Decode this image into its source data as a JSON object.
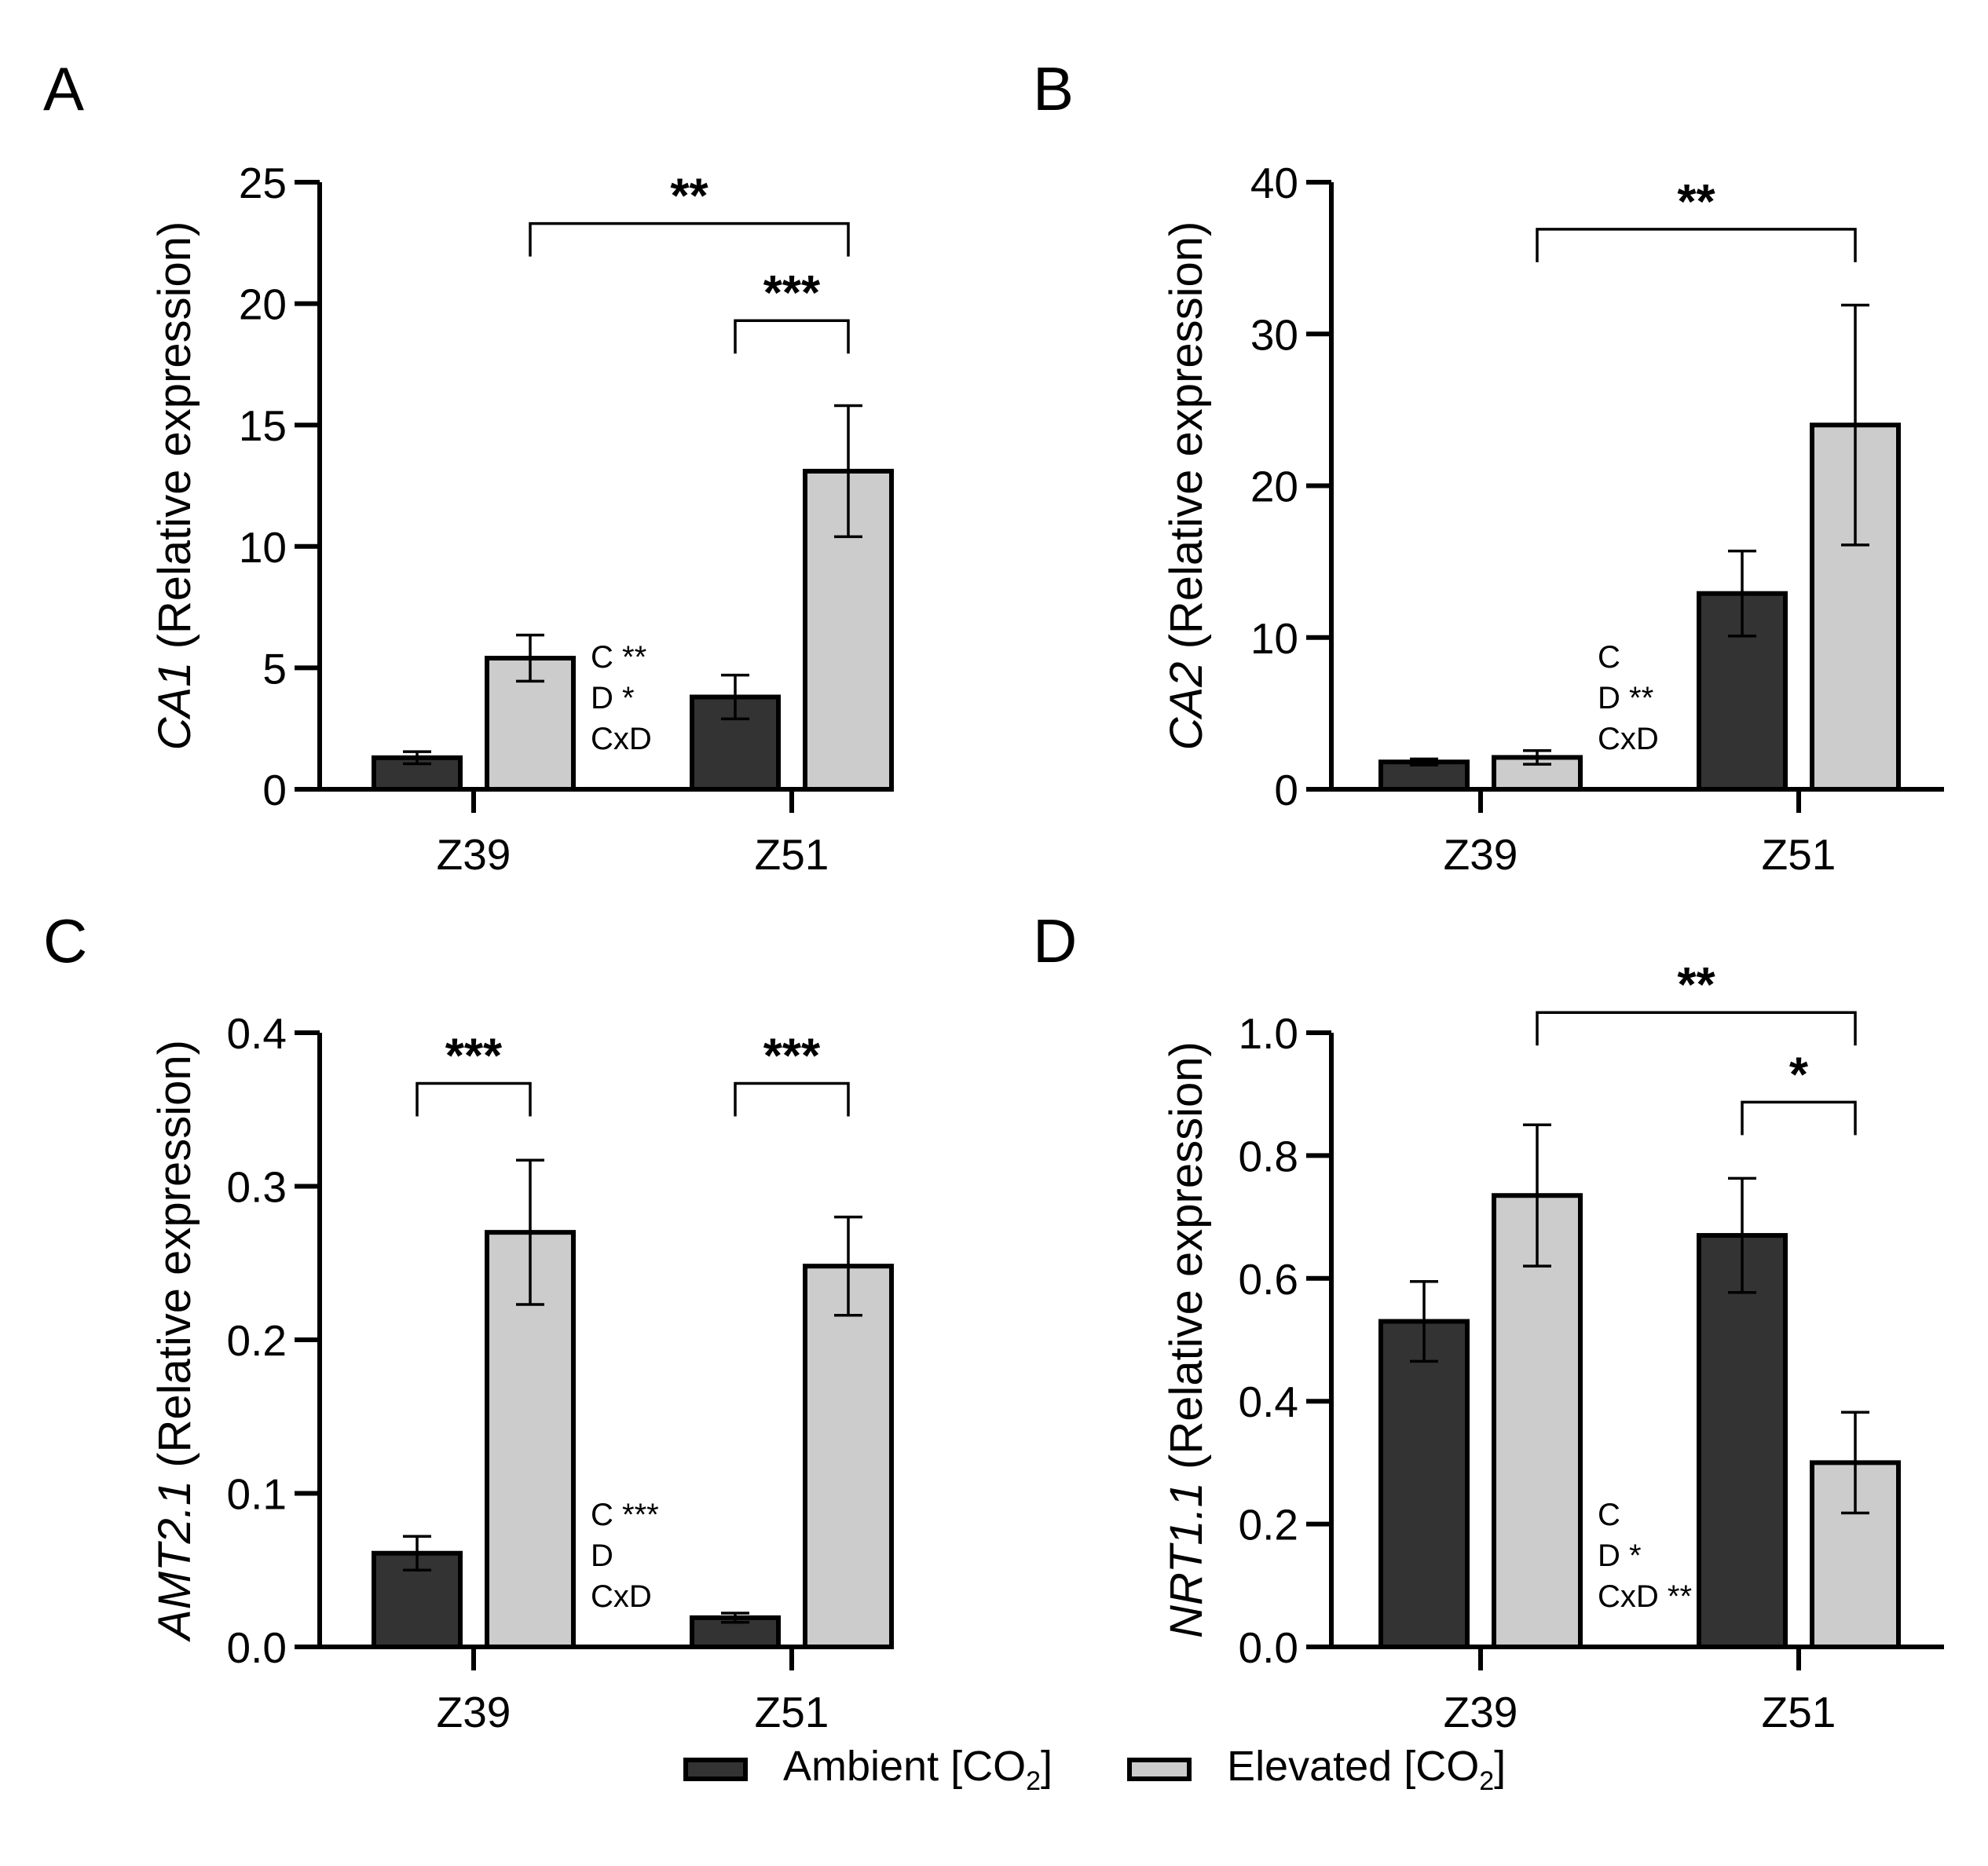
{
  "colors": {
    "ambient": "#333333",
    "elevated": "#cccccc",
    "stroke": "#000000"
  },
  "legend": {
    "ambient_label": "Ambient [CO",
    "elevated_label": "Elevated [CO",
    "sub": "2",
    "close": "]"
  },
  "chart_data": [
    {
      "panel": "A",
      "type": "bar",
      "gene": "CA1",
      "ylabel_rest": " (Relative expression)",
      "categories": [
        "Z39",
        "Z51"
      ],
      "ylim": [
        0,
        25
      ],
      "yticks": [
        0,
        5,
        10,
        15,
        20,
        25
      ],
      "ytick_labels": [
        "0",
        "5",
        "10",
        "15",
        "20",
        "25"
      ],
      "series": [
        {
          "name": "Ambient [CO2]",
          "values": [
            1.3,
            3.8
          ],
          "errors": [
            0.25,
            0.9
          ]
        },
        {
          "name": "Elevated [CO2]",
          "values": [
            5.4,
            13.1
          ],
          "errors": [
            0.95,
            2.7
          ]
        }
      ],
      "stats": [
        "C **",
        "D *",
        "CxD"
      ],
      "stats_anchor": [
        0,
        1
      ],
      "brackets": [
        {
          "from": [
            0,
            1
          ],
          "to": [
            1,
            1
          ],
          "y": 23.3,
          "label": "**"
        },
        {
          "from": [
            1,
            0
          ],
          "to": [
            1,
            1
          ],
          "y": 19.3,
          "label": "***"
        }
      ]
    },
    {
      "panel": "B",
      "type": "bar",
      "gene": "CA2",
      "ylabel_rest": " (Relative expression)",
      "categories": [
        "Z39",
        "Z51"
      ],
      "ylim": [
        0,
        40
      ],
      "yticks": [
        0,
        10,
        20,
        30,
        40
      ],
      "ytick_labels": [
        "0",
        "10",
        "20",
        "30",
        "40"
      ],
      "series": [
        {
          "name": "Ambient [CO2]",
          "values": [
            1.8,
            12.9
          ],
          "errors": [
            0.2,
            2.8
          ]
        },
        {
          "name": "Elevated [CO2]",
          "values": [
            2.1,
            24.0
          ],
          "errors": [
            0.45,
            7.9
          ]
        }
      ],
      "stats": [
        "C",
        "D **",
        "CxD"
      ],
      "stats_anchor": [
        0,
        1
      ],
      "brackets": [
        {
          "from": [
            0,
            1
          ],
          "to": [
            1,
            1
          ],
          "y": 36.9,
          "label": "**"
        }
      ]
    },
    {
      "panel": "C",
      "type": "bar",
      "gene": "AMT2.1",
      "ylabel_rest": " (Relative expression)",
      "categories": [
        "Z39",
        "Z51"
      ],
      "ylim": [
        0,
        0.4
      ],
      "yticks": [
        0,
        0.1,
        0.2,
        0.3,
        0.4
      ],
      "ytick_labels": [
        "0.0",
        "0.1",
        "0.2",
        "0.3",
        "0.4"
      ],
      "series": [
        {
          "name": "Ambient [CO2]",
          "values": [
            0.061,
            0.019
          ],
          "errors": [
            0.011,
            0.003
          ]
        },
        {
          "name": "Elevated [CO2]",
          "values": [
            0.27,
            0.248
          ],
          "errors": [
            0.047,
            0.032
          ]
        }
      ],
      "stats": [
        "C ***",
        "D",
        "CxD"
      ],
      "stats_anchor": [
        0,
        1
      ],
      "brackets": [
        {
          "from": [
            0,
            0
          ],
          "to": [
            0,
            1
          ],
          "y": 0.367,
          "label": "***"
        },
        {
          "from": [
            1,
            0
          ],
          "to": [
            1,
            1
          ],
          "y": 0.367,
          "label": "***"
        }
      ]
    },
    {
      "panel": "D",
      "type": "bar",
      "gene": "NRT1.1",
      "ylabel_rest": " (Relative expression)",
      "categories": [
        "Z39",
        "Z51"
      ],
      "ylim": [
        0,
        1.0
      ],
      "yticks": [
        0,
        0.2,
        0.4,
        0.6,
        0.8,
        1.0
      ],
      "ytick_labels": [
        "0.0",
        "0.2",
        "0.4",
        "0.6",
        "0.8",
        "1.0"
      ],
      "series": [
        {
          "name": "Ambient [CO2]",
          "values": [
            0.53,
            0.67
          ],
          "errors": [
            0.065,
            0.093
          ]
        },
        {
          "name": "Elevated [CO2]",
          "values": [
            0.735,
            0.3
          ],
          "errors": [
            0.115,
            0.082
          ]
        }
      ],
      "stats": [
        "C",
        "D *",
        "CxD **"
      ],
      "stats_anchor": [
        0,
        1
      ],
      "brackets": [
        {
          "from": [
            0,
            1
          ],
          "to": [
            1,
            1
          ],
          "y": 1.033,
          "label": "**"
        },
        {
          "from": [
            1,
            0
          ],
          "to": [
            1,
            1
          ],
          "y": 0.887,
          "label": "*"
        }
      ]
    }
  ]
}
